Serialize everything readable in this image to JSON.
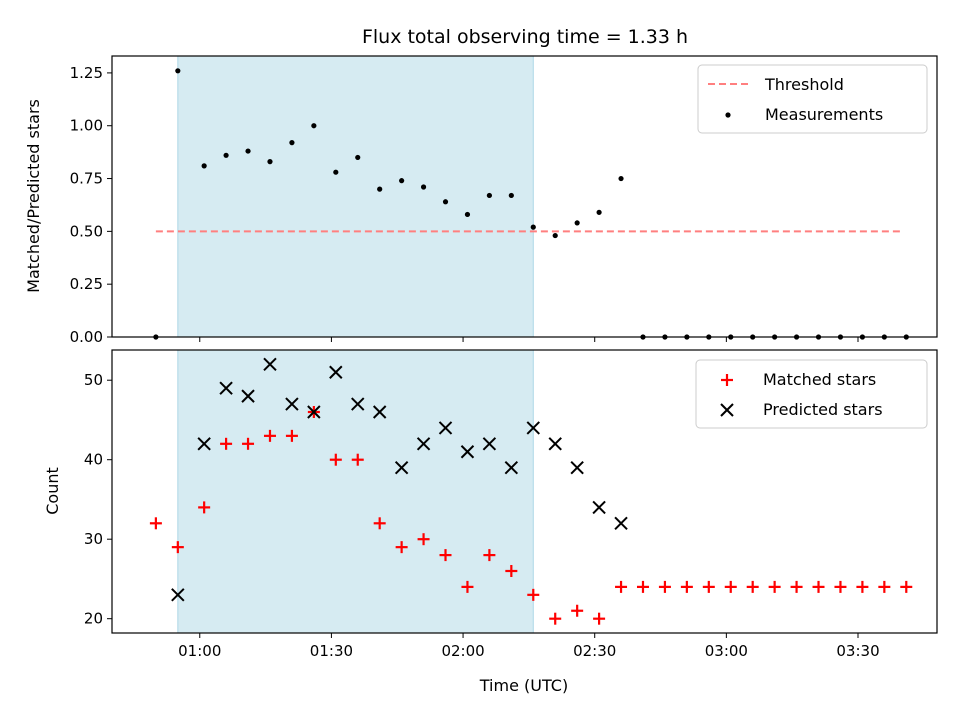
{
  "chart_data": [
    {
      "type": "scatter",
      "title": "Flux total observing time = 1.33 h",
      "xlabel": "",
      "ylabel": "Matched/Predicted stars",
      "xlim": [
        "00:40",
        "03:48"
      ],
      "ylim": [
        0,
        1.33
      ],
      "yticks": [
        "0.00",
        "0.25",
        "0.50",
        "0.75",
        "1.00",
        "1.25"
      ],
      "ytick_values": [
        0,
        0.25,
        0.5,
        0.75,
        1.0,
        1.25
      ],
      "shaded_span": [
        "00:55",
        "02:16"
      ],
      "shaded_color": "#add8e6",
      "legend": {
        "placement": "top-right",
        "entries": [
          {
            "label": "Threshold",
            "style": "dashed-line",
            "color": "#ff7f7f"
          },
          {
            "label": "Measurements",
            "style": "dot",
            "color": "#000000"
          }
        ]
      },
      "series": [
        {
          "name": "Threshold",
          "kind": "line",
          "color": "#ff7f7f",
          "x": [
            "00:50",
            "03:40"
          ],
          "values": [
            0.5,
            0.5
          ]
        },
        {
          "name": "Measurements",
          "kind": "dot",
          "color": "#000000",
          "x": [
            "00:50",
            "00:55",
            "01:01",
            "01:06",
            "01:11",
            "01:16",
            "01:21",
            "01:26",
            "01:31",
            "01:36",
            "01:41",
            "01:46",
            "01:51",
            "01:56",
            "02:01",
            "02:06",
            "02:11",
            "02:16",
            "02:21",
            "02:26",
            "02:31",
            "02:36",
            "02:41",
            "02:46",
            "02:51",
            "02:56",
            "03:01",
            "03:06",
            "03:11",
            "03:16",
            "03:21",
            "03:26",
            "03:31",
            "03:36",
            "03:41"
          ],
          "values": [
            0.0,
            1.26,
            0.81,
            0.86,
            0.88,
            0.83,
            0.92,
            1.0,
            0.78,
            0.85,
            0.7,
            0.74,
            0.71,
            0.64,
            0.58,
            0.67,
            0.67,
            0.52,
            0.48,
            0.54,
            0.59,
            0.75,
            0.0,
            0.0,
            0.0,
            0.0,
            0.0,
            0.0,
            0.0,
            0.0,
            0.0,
            0.0,
            0.0,
            0.0,
            0.0
          ]
        }
      ]
    },
    {
      "type": "scatter",
      "title": "",
      "xlabel": "Time (UTC)",
      "ylabel": "Count",
      "xlim": [
        "00:40",
        "03:48"
      ],
      "ylim": [
        18.2,
        53.8
      ],
      "xticks": [
        "01:00",
        "01:30",
        "02:00",
        "02:30",
        "03:00",
        "03:30"
      ],
      "yticks": [
        "20",
        "30",
        "40",
        "50"
      ],
      "ytick_values": [
        20,
        30,
        40,
        50
      ],
      "shaded_span": [
        "00:55",
        "02:16"
      ],
      "shaded_color": "#add8e6",
      "legend": {
        "placement": "top-right",
        "entries": [
          {
            "label": "Matched stars",
            "style": "plus",
            "color": "#ff0000"
          },
          {
            "label": "Predicted stars",
            "style": "x",
            "color": "#000000"
          }
        ]
      },
      "series": [
        {
          "name": "Matched stars",
          "kind": "plus",
          "color": "#ff0000",
          "x": [
            "00:50",
            "00:55",
            "01:01",
            "01:06",
            "01:11",
            "01:16",
            "01:21",
            "01:26",
            "01:31",
            "01:36",
            "01:41",
            "01:46",
            "01:51",
            "01:56",
            "02:01",
            "02:06",
            "02:11",
            "02:16",
            "02:21",
            "02:26",
            "02:31",
            "02:36",
            "02:41",
            "02:46",
            "02:51",
            "02:56",
            "03:01",
            "03:06",
            "03:11",
            "03:16",
            "03:21",
            "03:26",
            "03:31",
            "03:36",
            "03:41"
          ],
          "values": [
            32,
            29,
            34,
            42,
            42,
            43,
            43,
            46,
            40,
            40,
            32,
            29,
            30,
            28,
            24,
            28,
            26,
            23,
            20,
            21,
            20,
            24,
            24,
            24,
            24,
            24,
            24,
            24,
            24,
            24,
            24,
            24,
            24,
            24,
            24
          ]
        },
        {
          "name": "Predicted stars",
          "kind": "x",
          "color": "#000000",
          "x": [
            "00:55",
            "01:01",
            "01:06",
            "01:11",
            "01:16",
            "01:21",
            "01:26",
            "01:31",
            "01:36",
            "01:41",
            "01:46",
            "01:51",
            "01:56",
            "02:01",
            "02:06",
            "02:11",
            "02:16",
            "02:21",
            "02:26",
            "02:31",
            "02:36"
          ],
          "values": [
            23,
            42,
            49,
            48,
            52,
            47,
            46,
            51,
            47,
            46,
            39,
            42,
            44,
            41,
            42,
            39,
            44,
            42,
            39,
            34,
            32
          ]
        }
      ]
    }
  ]
}
